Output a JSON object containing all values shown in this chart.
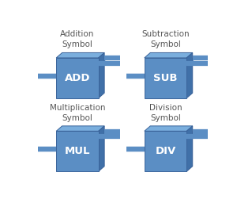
{
  "background_color": "#ffffff",
  "symbols": [
    {
      "label": "Addition\nSymbol",
      "text": "ADD"
    },
    {
      "label": "Subtraction\nSymbol",
      "text": "SUB"
    },
    {
      "label": "Multiplication\nSymbol",
      "text": "MUL"
    },
    {
      "label": "Division\nSymbol",
      "text": "DIV"
    }
  ],
  "block_front_color": "#5b8ec4",
  "block_top_color": "#7aaedd",
  "block_right_color": "#4070a8",
  "block_edge_color": "#3a639a",
  "wire_color": "#5b8ec4",
  "wire_edge_color": "#3a639a",
  "text_color": "#ffffff",
  "label_color": "#555555",
  "label_fontsize": 7.5,
  "symbol_fontsize": 9.5,
  "fig_width": 3.0,
  "fig_height": 2.61,
  "dpi": 100
}
